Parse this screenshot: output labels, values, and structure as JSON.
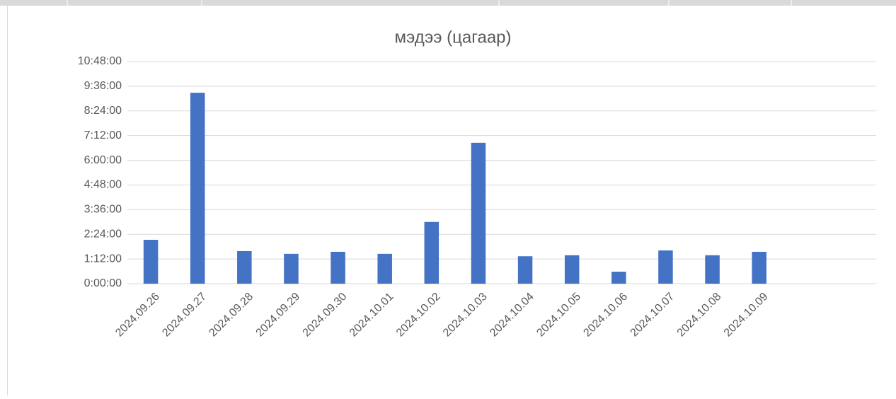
{
  "chart_data": {
    "type": "bar",
    "title": "мэдээ (цагаар)",
    "categories": [
      "2024.09.26",
      "2024.09.27",
      "2024.09.28",
      "2024.09.29",
      "2024.09.30",
      "2024.10.01",
      "2024.10.02",
      "2024.10.03",
      "2024.10.04",
      "2024.10.05",
      "2024.10.06",
      "2024.10.07",
      "2024.10.08",
      "2024.10.09",
      null,
      null
    ],
    "values": [
      128,
      557,
      95,
      87,
      93,
      87,
      180,
      411,
      80,
      83,
      35,
      97,
      83,
      93,
      null,
      null
    ],
    "color": "#4472c4",
    "ylim": [
      0,
      648
    ],
    "yticks": [
      {
        "value": 0,
        "label": "0:00:00"
      },
      {
        "value": 72,
        "label": "1:12:00"
      },
      {
        "value": 144,
        "label": "2:24:00"
      },
      {
        "value": 216,
        "label": "3:36:00"
      },
      {
        "value": 288,
        "label": "4:48:00"
      },
      {
        "value": 360,
        "label": "6:00:00"
      },
      {
        "value": 432,
        "label": "7:12:00"
      },
      {
        "value": 504,
        "label": "8:24:00"
      },
      {
        "value": 576,
        "label": "9:36:00"
      },
      {
        "value": 648,
        "label": "10:48:00"
      }
    ],
    "grid": true
  }
}
